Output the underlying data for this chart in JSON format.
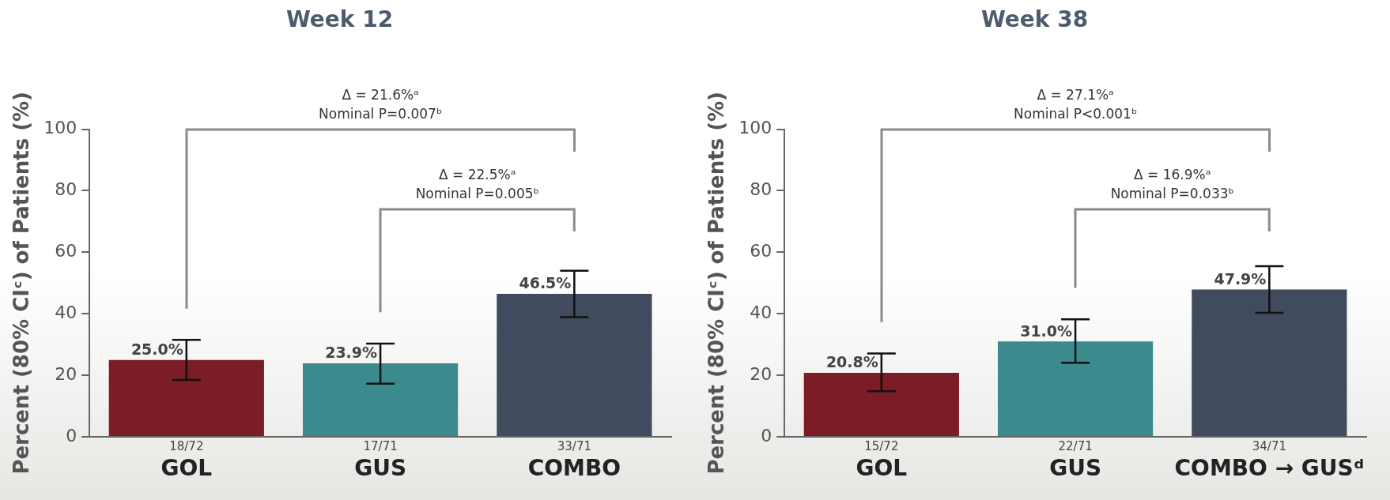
{
  "chart_data": [
    {
      "type": "bar",
      "title": "Week 12",
      "ylabel": "Percent (80% CIᶜ) of Patients (%)",
      "categories": [
        "18/72\nGOL",
        "17/71\nGUS",
        "33/71\nCOMBO"
      ],
      "values": [
        25.0,
        23.9,
        46.5
      ],
      "colors": [
        "#7b1c27",
        "#3b8b8e",
        "#404b5d"
      ],
      "errors": [
        [
          18.5,
          31.5
        ],
        [
          17.3,
          30.3
        ],
        [
          38.9,
          54.0
        ]
      ],
      "value_labels": [
        "25.0%",
        "23.9%",
        "46.5%"
      ],
      "ylim": [
        0,
        100
      ],
      "yticks": [
        0,
        20,
        40,
        60,
        80,
        100
      ],
      "grid": false,
      "annotations": [
        "Δ = 21.6%ᵃ",
        "Nominal P=0.007ᵇ",
        "Δ = 22.5%ᵃ",
        "Nominal P=0.005ᵇ"
      ]
    },
    {
      "type": "bar",
      "title": "Week 38",
      "ylabel": "Percent (80% CIᶜ) of Patients (%)",
      "categories": [
        "15/72\nGOL",
        "22/71\nGUS",
        "34/71\nCOMBO → GUSᵈ"
      ],
      "values": [
        20.8,
        31.0,
        47.9
      ],
      "colors": [
        "#7b1c27",
        "#3b8b8e",
        "#404b5d"
      ],
      "errors": [
        [
          14.8,
          27.1
        ],
        [
          24.1,
          38.2
        ],
        [
          40.3,
          55.5
        ]
      ],
      "value_labels": [
        "20.8%",
        "31.0%",
        "47.9%"
      ],
      "ylim": [
        0,
        100
      ],
      "yticks": [
        0,
        20,
        40,
        60,
        80,
        100
      ],
      "grid": false,
      "annotations": [
        "Δ = 27.1%ᵃ",
        "Nominal P<0.001ᵇ",
        "Δ = 16.9%ᵃ",
        "Nominal P=0.033ᵇ"
      ]
    }
  ]
}
